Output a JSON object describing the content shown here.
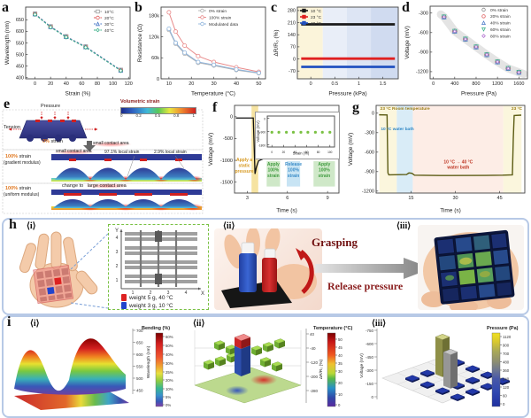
{
  "labels": {
    "a": "a",
    "b": "b",
    "c": "c",
    "d": "d",
    "e": "e",
    "f": "f",
    "g": "g",
    "h": "h",
    "i": "i"
  },
  "colors": {
    "row_border": "#b7c9e6",
    "highlight_glow": "#ff4646",
    "strain_orange": "#e07820",
    "curve_olive": "#5c5c14",
    "hot_red": "#d02020",
    "cold_blue": "#2050c0"
  },
  "chart_data": [
    {
      "id": "a",
      "type": "line",
      "xlabel": "Strain (%)",
      "ylabel": "Wavelength (nm)",
      "xlim": [
        -12,
        122
      ],
      "ylim": [
        395,
        705
      ],
      "xticks": [
        0,
        20,
        40,
        60,
        80,
        100,
        120
      ],
      "yticks": [
        400,
        450,
        500,
        550,
        600,
        650
      ],
      "x": [
        0,
        20,
        40,
        65,
        110
      ],
      "legend_position": "top-right",
      "series": [
        {
          "name": "10°C",
          "color": "#9a9a9a",
          "marker": "square",
          "dash": true,
          "values": [
            676,
            621,
            578,
            534,
            433
          ]
        },
        {
          "name": "20°C",
          "color": "#e05a5a",
          "marker": "circle",
          "dash": true,
          "values": [
            674,
            619,
            576,
            532,
            431
          ]
        },
        {
          "name": "30°C",
          "color": "#4a78c8",
          "marker": "triangle",
          "dash": true,
          "values": [
            675,
            620,
            577,
            533,
            432
          ]
        },
        {
          "name": "40°C",
          "color": "#3db08a",
          "marker": "diamond",
          "dash": true,
          "values": [
            673,
            618,
            575,
            531,
            430
          ]
        }
      ]
    },
    {
      "id": "b",
      "type": "line",
      "xlabel": "Temperature (°C)",
      "ylabel": "Resistance (Ω)",
      "xlim": [
        6.5,
        53
      ],
      "ylim": [
        0,
        205000
      ],
      "xticks": [
        10,
        20,
        30,
        40,
        50
      ],
      "yticks": [
        0,
        60000,
        120000,
        180000
      ],
      "yticklabels": [
        "0",
        "60k",
        "120k",
        "180k"
      ],
      "x": [
        10,
        13,
        17,
        23,
        30,
        40,
        50
      ],
      "legend_position": "top-right",
      "series": [
        {
          "name": "0% strain",
          "color": "#b0b0b0",
          "marker": "circle",
          "values": [
            140000,
            100000,
            72000,
            46000,
            38000,
            25000,
            16000
          ]
        },
        {
          "name": "100% strain",
          "color": "#e88a8a",
          "marker": "circle",
          "values": [
            190000,
            135000,
            95000,
            65000,
            48000,
            33000,
            20000
          ]
        },
        {
          "name": "Modulated data",
          "color": "#8fb4dc",
          "marker": "circle",
          "values": [
            143000,
            103000,
            75000,
            48000,
            40000,
            27000,
            17000
          ]
        }
      ]
    },
    {
      "id": "c",
      "type": "line",
      "xlabel": "Pressure (kPa)",
      "ylabel": "ΔR/R₀ (%)",
      "xlim": [
        -0.28,
        1.82
      ],
      "ylim": [
        -115,
        300
      ],
      "xticks": [
        0,
        0.5,
        1,
        1.5
      ],
      "xticklabels": [
        "0",
        "0.5",
        "1",
        "1.5"
      ],
      "yticks": [
        -70,
        0,
        70,
        140,
        210,
        280
      ],
      "legend_position": "top-left",
      "bands": [
        {
          "x0": -0.28,
          "x1": 0.25,
          "color": "#fbf4da"
        },
        {
          "x0": 0.25,
          "x1": 0.75,
          "color": "#e9eef8"
        },
        {
          "x0": 0.75,
          "x1": 1.25,
          "color": "#dde5f4"
        },
        {
          "x0": 1.25,
          "x1": 1.82,
          "color": "#d0dbf0"
        }
      ],
      "series": [
        {
          "name": "10 °C",
          "color": "#1a1a1a",
          "lw": 2.8,
          "x": [
            -0.2,
            1.75
          ],
          "values": [
            200,
            200
          ],
          "marker": "square",
          "mfill": true,
          "legend_marker_only": true
        },
        {
          "name": "23 °C",
          "color": "#e02020",
          "lw": 2.8,
          "x": [
            -0.2,
            1.75
          ],
          "values": [
            2,
            2
          ],
          "marker": "square",
          "mfill": true,
          "legend_marker_only": true
        },
        {
          "name": "40 °C",
          "color": "#2050c0",
          "lw": 2.8,
          "x": [
            -0.2,
            1.75
          ],
          "values": [
            -46,
            -46
          ],
          "marker": "square",
          "mfill": true,
          "legend_marker_only": true
        }
      ]
    },
    {
      "id": "d",
      "type": "scatter",
      "xlabel": "Pressure (Pa)",
      "ylabel": "Voltage (mV)",
      "xlim": [
        -60,
        1760
      ],
      "ylim": [
        -1310,
        -195
      ],
      "xticks": [
        0,
        400,
        800,
        1200,
        1600
      ],
      "yticks": [
        -300,
        -600,
        -900,
        -1200
      ],
      "x": [
        200,
        400,
        600,
        800,
        1000,
        1200,
        1400,
        1600
      ],
      "legend_position": "top-right",
      "trend": {
        "x": [
          140,
          200,
          400,
          600,
          800,
          1000,
          1200,
          1400,
          1600,
          1690
        ],
        "y": [
          -320,
          -360,
          -580,
          -700,
          -820,
          -940,
          -1050,
          -1150,
          -1210,
          -1235
        ],
        "color": "#cdcdcd",
        "width": 9,
        "opacity": 0.55
      },
      "series": [
        {
          "name": "0% strain",
          "color": "#8a8a8a",
          "marker": "circle",
          "msize": 2.5,
          "noline": true,
          "values": [
            -360,
            -580,
            -700,
            -820,
            -940,
            -1050,
            -1150,
            -1210
          ]
        },
        {
          "name": "20% strain",
          "color": "#e06060",
          "marker": "circle",
          "msize": 1.9,
          "noline": true,
          "values": [
            -360,
            -580,
            -700,
            -820,
            -940,
            -1050,
            -1150,
            -1210
          ]
        },
        {
          "name": "40% strain",
          "color": "#4a78c8",
          "marker": "triangle",
          "msize": 2.2,
          "noline": true,
          "values": [
            -360,
            -580,
            -700,
            -820,
            -940,
            -1050,
            -1150,
            -1210
          ]
        },
        {
          "name": "60% strain",
          "color": "#3db08a",
          "marker": "tridown",
          "msize": 2.2,
          "noline": true,
          "values": [
            -360,
            -580,
            -700,
            -820,
            -940,
            -1050,
            -1150,
            -1210
          ]
        },
        {
          "name": "80% strain",
          "color": "#b070d0",
          "marker": "diamond",
          "msize": 1.7,
          "noline": true,
          "values": [
            -360,
            -580,
            -700,
            -820,
            -940,
            -1050,
            -1150,
            -1210
          ]
        }
      ]
    },
    {
      "id": "f",
      "type": "line",
      "xlabel": "Time (s)",
      "ylabel": "Voltage (mV)",
      "xlim": [
        2.05,
        9.85
      ],
      "ylim": [
        -1750,
        260
      ],
      "xticks": [
        3,
        6,
        9
      ],
      "yticks": [
        0,
        -500,
        -1000,
        -1500
      ],
      "x": [
        2.15,
        3.45,
        3.52,
        3.58,
        3.68,
        3.85,
        4.2,
        5,
        6,
        7,
        8,
        9.7
      ],
      "bands": [
        {
          "x0": 3.32,
          "x1": 3.82,
          "color": "#f6e3a1"
        },
        {
          "x0": 4.45,
          "x1": 5.45,
          "y0": -1600,
          "y1": -1020,
          "color": "#cfe8c8"
        },
        {
          "x0": 5.95,
          "x1": 6.95,
          "y0": -1600,
          "y1": -1020,
          "color": "#c8e4f4"
        },
        {
          "x0": 7.95,
          "x1": 9.55,
          "y0": -1600,
          "y1": -1020,
          "color": "#cfe8c8"
        }
      ],
      "series": [
        {
          "name": "voltage",
          "color": "#111111",
          "lw": 1.3,
          "values": [
            -30,
            -30,
            -700,
            -1310,
            -1160,
            -1010,
            -965,
            -955,
            -950,
            -955,
            -950,
            -950
          ]
        }
      ],
      "annotations": [
        {
          "x": 2.78,
          "y": -1020,
          "text": "Apply a\nstatic\npressure",
          "color": "#d79a23"
        },
        {
          "x": 4.95,
          "y": -1120,
          "text": "Apply\n100%\nstrain",
          "color": "#3f9b3f"
        },
        {
          "x": 6.45,
          "y": -1120,
          "text": "Release\n100%\nstrain",
          "color": "#3a8cc8"
        },
        {
          "x": 8.75,
          "y": -1120,
          "text": "Apply\n100%\nstrain",
          "color": "#3f9b3f"
        }
      ]
    },
    {
      "id": "f_inset",
      "type": "scatter",
      "xlabel": "Strain (%)",
      "ylabel": "Voltage (mV)",
      "xlim": [
        -8,
        108
      ],
      "ylim": [
        -1950,
        150
      ],
      "xticks": [
        0,
        20,
        40,
        60,
        80,
        100
      ],
      "yticks": [
        0,
        -900,
        -1800
      ],
      "x": [
        0,
        12,
        25,
        37,
        50,
        62,
        75,
        87,
        100
      ],
      "series": [
        {
          "name": "voltage vs strain",
          "color": "#7ac143",
          "marker": "circle",
          "msize": 1.2,
          "mfill": true,
          "noline": true,
          "values": [
            -950,
            -950,
            -950,
            -950,
            -950,
            -950,
            -950,
            -950,
            -950
          ]
        }
      ]
    },
    {
      "id": "g",
      "type": "line",
      "xlabel": "Time (s)",
      "ylabel": "Voltage (mV)",
      "xlim": [
        3.2,
        53.5
      ],
      "ylim": [
        -1230,
        120
      ],
      "xticks": [
        15,
        30,
        45
      ],
      "yticks": [
        0,
        -300,
        -600,
        -900,
        -1200
      ],
      "x": [
        4.2,
        6.9,
        7.05,
        7.2,
        7.5,
        13.5,
        14.3,
        15.3,
        16.2,
        25,
        40,
        46,
        49.3,
        49.6,
        49.9,
        52.3
      ],
      "bands": [
        {
          "x0": 4.3,
          "x1": 10.2,
          "color": "#fbf6dd"
        },
        {
          "x0": 10.2,
          "x1": 15.6,
          "color": "#d9ecf7"
        },
        {
          "x0": 15.6,
          "x1": 46.2,
          "color": "#fdede6"
        },
        {
          "x0": 46.2,
          "x1": 52.4,
          "color": "#fbf6dd"
        }
      ],
      "series": [
        {
          "name": "voltage",
          "color": "#5c5c14",
          "lw": 1.4,
          "values": [
            -25,
            -28,
            -500,
            -920,
            -950,
            -945,
            -920,
            -925,
            -955,
            -960,
            -958,
            -955,
            -950,
            -400,
            -35,
            -30
          ]
        }
      ],
      "annotations": [
        {
          "x": 4.6,
          "y": 55,
          "text": "23 °C Room temperature",
          "color": "#9a7b12",
          "anchor": "start",
          "fs": 4.8
        },
        {
          "x": 52.6,
          "y": 55,
          "text": "23 °C",
          "color": "#9a7b12",
          "anchor": "end",
          "fs": 4.8
        },
        {
          "x": 4.8,
          "y": -260,
          "text": "10 °C water bath",
          "color": "#2f86c4",
          "anchor": "start",
          "fs": 4.8
        },
        {
          "x": 31,
          "y": -770,
          "text": "10 °C → 40 °C\nwater bath",
          "color": "#c03a28",
          "fs": 5
        }
      ]
    },
    {
      "id": "i1",
      "type": "surface",
      "zlabel": "Wavelength (nm)",
      "zticks": [
        "700",
        "650",
        "600",
        "550",
        "500",
        "450"
      ],
      "colorbar": {
        "title": "Bending (%)",
        "labels": [
          "60%",
          "50%",
          "40%",
          "30%",
          "25%",
          "20%",
          "10%",
          "5%",
          "0%"
        ]
      },
      "description": "3D rainbow surface of wavelength over sensor x-y position under bending"
    },
    {
      "id": "i2",
      "type": "bar3d",
      "zlabel": "ΔR/R₀ (%)",
      "zticks": [
        "40",
        "-40",
        "-120",
        "-200",
        "-280"
      ],
      "colorbar": {
        "title": "Temperature (°C)",
        "labels": [
          "50",
          "45",
          "40",
          "35",
          "30",
          "20",
          "10",
          "0"
        ]
      },
      "bars": {
        "hot": "central red pillar up (40 °C touch)",
        "cold": "central blue pillar down (10 °C touch)",
        "ambient": "flat green bars at room temperature"
      }
    },
    {
      "id": "i3",
      "type": "bar3d",
      "zlabel": "Voltage (mV)",
      "zticks": [
        "-750",
        "-600",
        "-450",
        "-300",
        "-150",
        "0"
      ],
      "colorbar": {
        "title": "Pressure (Pa)",
        "labels": [
          "1120",
          "900",
          "700",
          "480",
          "360",
          "240",
          "120",
          "60",
          "0"
        ]
      },
      "bars": {
        "pressed": "two tall bars (olive and gray) at pressed cell",
        "others": "flat blue tiles near 0"
      }
    }
  ],
  "panel_e": {
    "pressure": "Pressure",
    "tension": "Tension",
    "strain0_pct": "0%",
    "strain0_rest": " strain",
    "small_contact_1": "small contact area",
    "colorbar_title": "Volumetric strain",
    "colorbar_ticks": [
      "0",
      "0.2",
      "0.5",
      "0.8",
      "1"
    ],
    "strain100_pct": "100%",
    "strain100_rest": " strain",
    "gradient_modulus": "(gradient modulus)",
    "small_contact_2": "small contact area",
    "local_strain_97": "97.1% local strain",
    "local_strain_29": "2.9% local strain",
    "uniform_modulus": "(uniform modulus)",
    "change_prefix": "change to ",
    "change_highlight": "large contact area"
  },
  "panel_h": {
    "sub_i": "⟨i⟩",
    "sub_ii": "⟨ii⟩",
    "sub_iii": "⟨iii⟩",
    "grid_y_label": "Y",
    "grid_x_label": "X",
    "grid_ticks": [
      "1",
      "2",
      "3",
      "4"
    ],
    "legend_red": "weight 5 g, 40 °C",
    "legend_blue": "weight 3 g, 10 °C",
    "grasping": "Grasping",
    "release": "Release pressure"
  },
  "panel_i_subs": {
    "i": "⟨i⟩",
    "ii": "⟨ii⟩",
    "iii": "⟨iii⟩"
  }
}
